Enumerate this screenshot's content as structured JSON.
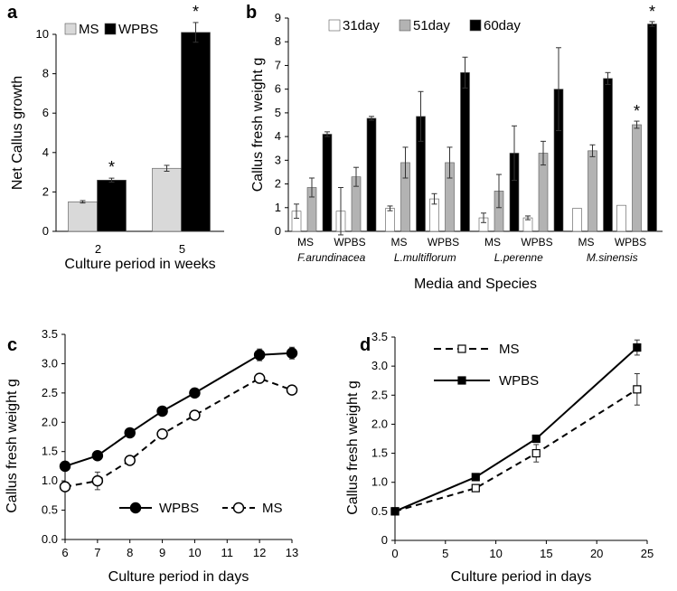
{
  "chart_data": [
    {
      "panel": "a",
      "type": "bar",
      "title": "",
      "xlabel": "Culture period in weeks",
      "ylabel": "Net Callus growth",
      "ylim": [
        0,
        10
      ],
      "yticks": [
        "0",
        "2",
        "4",
        "6",
        "8",
        "10"
      ],
      "categories": [
        "2",
        "5"
      ],
      "series": [
        {
          "name": "MS",
          "color": "#d9d9d9",
          "values": [
            1.5,
            3.2
          ],
          "errors": [
            0.06,
            0.15
          ]
        },
        {
          "name": "WPBS",
          "color": "#000000",
          "values": [
            2.6,
            10.1
          ],
          "errors": [
            0.1,
            0.5
          ]
        }
      ],
      "annotations": [
        "*",
        "*"
      ],
      "legend": "top-left"
    },
    {
      "panel": "b",
      "type": "bar",
      "title": "",
      "xlabel": "Media and Species",
      "ylabel": "Callus fresh weight  g",
      "ylim": [
        0,
        9
      ],
      "yticks": [
        "0",
        "1",
        "2",
        "3",
        "4",
        "5",
        "6",
        "7",
        "8",
        "9"
      ],
      "species": [
        "F.arundinacea",
        "L.multiflorum",
        "L.perenne",
        "M.sinensis"
      ],
      "media": [
        "MS",
        "WPBS"
      ],
      "series": [
        {
          "name": "31day",
          "color": "#ffffff",
          "values": [
            0.85,
            0.85,
            0.97,
            1.37,
            0.57,
            0.57,
            0.97,
            1.1
          ],
          "errors": [
            0.3,
            1.0,
            0.1,
            0.22,
            0.2,
            0.08,
            0.0,
            0.0
          ]
        },
        {
          "name": "51day",
          "color": "#b3b3b3",
          "values": [
            1.85,
            2.3,
            2.9,
            2.9,
            1.7,
            3.3,
            3.4,
            4.5
          ],
          "errors": [
            0.4,
            0.4,
            0.65,
            0.65,
            0.7,
            0.5,
            0.25,
            0.15
          ]
        },
        {
          "name": "60day",
          "color": "#000000",
          "values": [
            4.1,
            4.77,
            4.85,
            6.7,
            3.3,
            6.0,
            6.45,
            8.75
          ],
          "errors": [
            0.1,
            0.08,
            1.05,
            0.65,
            1.15,
            1.75,
            0.25,
            0.1
          ]
        }
      ],
      "annotations": [
        "*",
        "*"
      ],
      "legend": "top"
    },
    {
      "panel": "c",
      "type": "line",
      "title": "",
      "xlabel": "Culture period in days",
      "ylabel": "Callus fresh weight  g",
      "xlim": [
        6,
        13
      ],
      "ylim": [
        0,
        3.5
      ],
      "xticks": [
        "6",
        "7",
        "8",
        "9",
        "10",
        "11",
        "12",
        "13"
      ],
      "yticks": [
        "0.0",
        "0.5",
        "1.0",
        "1.5",
        "2.0",
        "2.5",
        "3.0",
        "3.5"
      ],
      "series": [
        {
          "name": "WPBS",
          "style": "solid-filled",
          "x": [
            6,
            7,
            8,
            9,
            10,
            12,
            13
          ],
          "y": [
            1.25,
            1.43,
            1.82,
            2.19,
            2.5,
            3.15,
            3.18
          ],
          "errors": [
            0,
            0,
            0,
            0,
            0,
            0.1,
            0.1
          ]
        },
        {
          "name": "MS",
          "style": "dashed-open",
          "x": [
            6,
            7,
            8,
            9,
            10,
            12,
            13
          ],
          "y": [
            0.9,
            1.0,
            1.35,
            1.8,
            2.12,
            2.75,
            2.55
          ],
          "errors": [
            0.07,
            0.15,
            0.05,
            0.05,
            0.07,
            0.08,
            0.07
          ]
        }
      ],
      "legend": "bottom-center"
    },
    {
      "panel": "d",
      "type": "line",
      "title": "",
      "xlabel": "Culture period in days",
      "ylabel": "Callus fresh weight  g",
      "xlim": [
        0,
        25
      ],
      "ylim": [
        0,
        3.5
      ],
      "xticks": [
        "0",
        "5",
        "10",
        "15",
        "20",
        "25"
      ],
      "yticks": [
        "0",
        "0.5",
        "1.0",
        "1.5",
        "2.0",
        "2.5",
        "3.0",
        "3.5"
      ],
      "series": [
        {
          "name": "MS",
          "style": "dashed-open",
          "x": [
            0,
            8,
            14,
            24
          ],
          "y": [
            0.5,
            0.9,
            1.5,
            2.6
          ],
          "errors": [
            0,
            0.05,
            0.15,
            0.27
          ]
        },
        {
          "name": "WPBS",
          "style": "solid-filled",
          "x": [
            0,
            8,
            14,
            24
          ],
          "y": [
            0.5,
            1.09,
            1.75,
            3.32
          ],
          "errors": [
            0,
            0,
            0,
            0.13
          ]
        }
      ],
      "legend": "top-left"
    }
  ]
}
